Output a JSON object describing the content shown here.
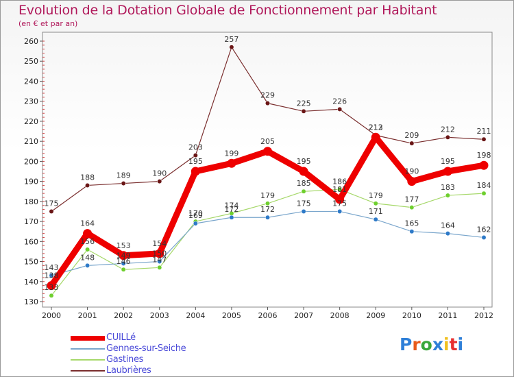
{
  "title": "Evolution de la Dotation Globale de Fonctionnement par Habitant",
  "subtitle": "(en € et par an)",
  "logo": {
    "text": "Proxiti",
    "colors": [
      "#2e7fd8",
      "#e85a1a",
      "#3aa63a",
      "#2e7fd8",
      "#f0c020",
      "#e83030",
      "#2e7fd8"
    ]
  },
  "chart_data": {
    "type": "line",
    "title": "Evolution de la Dotation Globale de Fonctionnement par Habitant",
    "subtitle": "(en € et par an)",
    "xlabel": "",
    "ylabel": "",
    "x": [
      "2000",
      "2001",
      "2002",
      "2003",
      "2004",
      "2005",
      "2006",
      "2007",
      "2008",
      "2009",
      "2010",
      "2011",
      "2012"
    ],
    "ylim": [
      130,
      260
    ],
    "yticks": [
      130,
      140,
      150,
      160,
      170,
      180,
      190,
      200,
      210,
      220,
      230,
      240,
      250,
      260
    ],
    "grid": false,
    "legend_position": "bottom-left",
    "series": [
      {
        "name": "Laubrières",
        "color": "#7a2e2e",
        "marker": "#6a1616",
        "width": 1.2,
        "values": [
          175,
          188,
          189,
          190,
          203,
          257,
          229,
          225,
          226,
          213,
          209,
          212,
          211
        ],
        "labels": [
          "175",
          "188",
          "189",
          "190",
          "203",
          "257",
          "229",
          "225",
          "226",
          "213",
          "209",
          "212",
          "211"
        ]
      },
      {
        "name": "Gastines",
        "color": "#a6d86a",
        "marker": "#6ecf2e",
        "width": 1.2,
        "values": [
          133,
          156,
          146,
          147,
          170,
          174,
          179,
          185,
          186,
          179,
          177,
          183,
          184
        ],
        "labels": [
          "133",
          "156",
          "146",
          "147",
          "170",
          "174",
          "179",
          "185",
          "186",
          "179",
          "177",
          "183",
          "184"
        ]
      },
      {
        "name": "Gennes-sur-Seiche",
        "color": "#7aa6cc",
        "marker": "#2e7ac8",
        "width": 1.2,
        "values": [
          143,
          148,
          149,
          150,
          169,
          172,
          172,
          175,
          175,
          171,
          165,
          164,
          162
        ],
        "labels": [
          "143",
          "148",
          "149",
          "150",
          "169",
          "172",
          "172",
          "175",
          "175",
          "171",
          "165",
          "164",
          "162"
        ]
      },
      {
        "name": "CUILLé",
        "color": "#ee0000",
        "marker": "#ee0000",
        "width": 9,
        "values": [
          138,
          164,
          153,
          154,
          195,
          199,
          205,
          195,
          181,
          212,
          190,
          195,
          198
        ],
        "labels": [
          "138",
          "164",
          "153",
          "154",
          "195",
          "199",
          "205",
          "195",
          "181",
          "212",
          "190",
          "195",
          "198"
        ]
      }
    ],
    "legend": [
      {
        "name": "CUILLé",
        "color": "#ee0000",
        "width": 7
      },
      {
        "name": "Gennes-sur-Seiche",
        "color": "#7aa6cc",
        "width": 2
      },
      {
        "name": "Gastines",
        "color": "#a6d86a",
        "width": 2
      },
      {
        "name": "Laubrières",
        "color": "#7a2e2e",
        "width": 2
      }
    ]
  }
}
